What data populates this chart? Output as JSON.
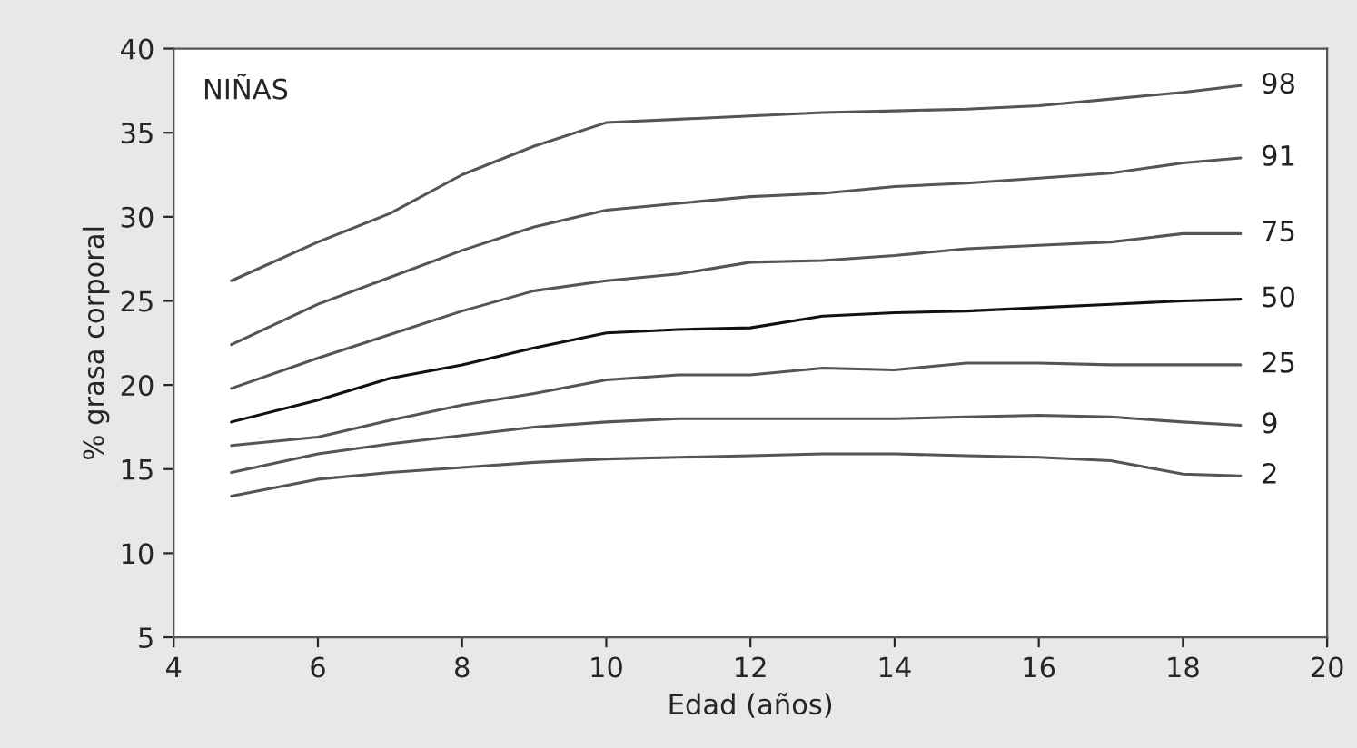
{
  "chart_data": {
    "type": "line",
    "xlabel": "Edad (años)",
    "ylabel": "% grasa corporal",
    "annotations": [
      "NIÑAS"
    ],
    "x": [
      4.8,
      6,
      7,
      8,
      9,
      10,
      11,
      12,
      13,
      14,
      15,
      16,
      17,
      18,
      18.8
    ],
    "xlim": [
      4,
      20
    ],
    "xticks": [
      4,
      6,
      8,
      10,
      12,
      14,
      16,
      18,
      20
    ],
    "ylim": [
      5,
      40
    ],
    "yticks": [
      5,
      10,
      15,
      20,
      25,
      30,
      35,
      40
    ],
    "grid": false,
    "legend": false,
    "marker": "none",
    "line_style": "solid",
    "series": [
      {
        "name": "98",
        "color": "#555555",
        "values": [
          26.2,
          28.5,
          30.2,
          32.5,
          34.2,
          35.6,
          35.8,
          36.0,
          36.2,
          36.3,
          36.4,
          36.6,
          37.0,
          37.4,
          37.8
        ]
      },
      {
        "name": "91",
        "color": "#555555",
        "values": [
          22.4,
          24.8,
          26.4,
          28.0,
          29.4,
          30.4,
          30.8,
          31.2,
          31.4,
          31.8,
          32.0,
          32.3,
          32.6,
          33.2,
          33.5
        ]
      },
      {
        "name": "75",
        "color": "#555555",
        "values": [
          19.8,
          21.6,
          23.0,
          24.4,
          25.6,
          26.2,
          26.6,
          27.3,
          27.4,
          27.7,
          28.1,
          28.3,
          28.5,
          29.0,
          29.0
        ]
      },
      {
        "name": "50",
        "color": "#111111",
        "values": [
          17.8,
          19.1,
          20.4,
          21.2,
          22.2,
          23.1,
          23.3,
          23.4,
          24.1,
          24.3,
          24.4,
          24.6,
          24.8,
          25.0,
          25.1
        ]
      },
      {
        "name": "25",
        "color": "#555555",
        "values": [
          16.4,
          16.9,
          17.9,
          18.8,
          19.5,
          20.3,
          20.6,
          20.6,
          21.0,
          20.9,
          21.3,
          21.3,
          21.2,
          21.2,
          21.2
        ]
      },
      {
        "name": "9",
        "color": "#555555",
        "values": [
          14.8,
          15.9,
          16.5,
          17.0,
          17.5,
          17.8,
          18.0,
          18.0,
          18.0,
          18.0,
          18.1,
          18.2,
          18.1,
          17.8,
          17.6
        ]
      },
      {
        "name": "2",
        "color": "#555555",
        "values": [
          13.4,
          14.4,
          14.8,
          15.1,
          15.4,
          15.6,
          15.7,
          15.8,
          15.9,
          15.9,
          15.8,
          15.7,
          15.5,
          14.7,
          14.6
        ]
      }
    ]
  }
}
